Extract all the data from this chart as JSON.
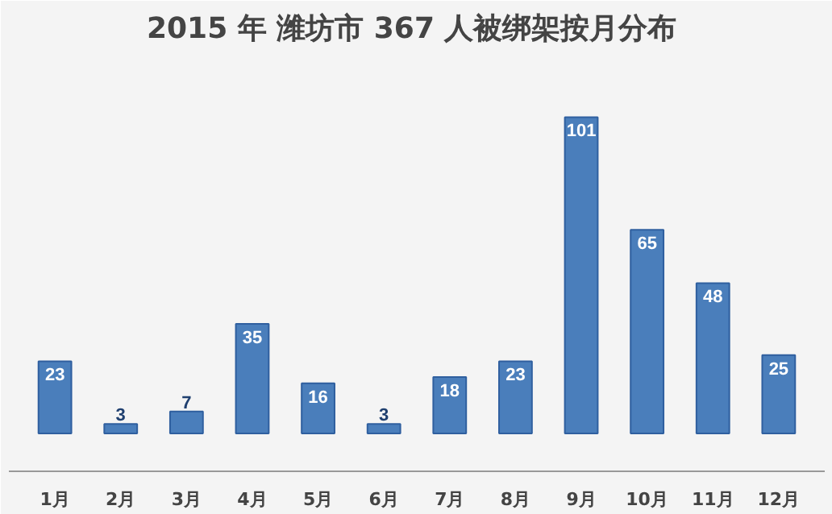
{
  "chart_data": {
    "type": "bar",
    "title": "2015 年  潍坊市 367 人被绑架按月分布",
    "categories": [
      "1月",
      "2月",
      "3月",
      "4月",
      "5月",
      "6月",
      "7月",
      "8月",
      "9月",
      "10月",
      "11月",
      "12月"
    ],
    "values": [
      23,
      3,
      7,
      35,
      16,
      3,
      18,
      23,
      101,
      65,
      48,
      25
    ],
    "color": "#4a7ebb",
    "data_labels": true
  }
}
